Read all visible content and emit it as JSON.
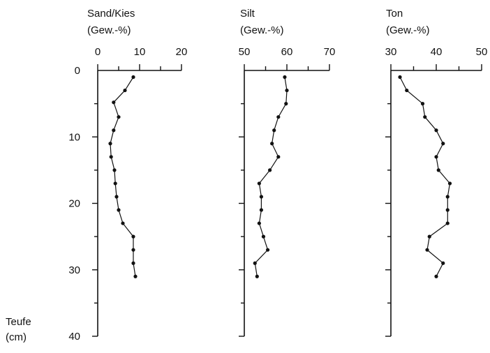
{
  "depth_axis": {
    "label_line1": "Teufe",
    "label_line2": "(cm)",
    "ticks": [
      0,
      10,
      20,
      30,
      40
    ],
    "range": [
      0,
      40
    ]
  },
  "chart_data": [
    {
      "type": "line",
      "title_line1": "Sand/Kies",
      "title_line2": "(Gew.-%)",
      "xlim": [
        0,
        20
      ],
      "x_ticks": [
        0,
        10,
        20
      ],
      "ylim": [
        0,
        40
      ],
      "y_inverted": true,
      "points": [
        {
          "x": 8.5,
          "y": 1
        },
        {
          "x": 6.5,
          "y": 3
        },
        {
          "x": 3.8,
          "y": 4.8
        },
        {
          "x": 5.0,
          "y": 7
        },
        {
          "x": 3.8,
          "y": 9
        },
        {
          "x": 3.0,
          "y": 11
        },
        {
          "x": 3.2,
          "y": 13
        },
        {
          "x": 4.0,
          "y": 15
        },
        {
          "x": 4.2,
          "y": 17
        },
        {
          "x": 4.5,
          "y": 19
        },
        {
          "x": 5.0,
          "y": 21
        },
        {
          "x": 6.0,
          "y": 23
        },
        {
          "x": 8.5,
          "y": 25
        },
        {
          "x": 8.5,
          "y": 27
        },
        {
          "x": 8.5,
          "y": 29
        },
        {
          "x": 9.0,
          "y": 31
        }
      ]
    },
    {
      "type": "line",
      "title_line1": "Silt",
      "title_line2": "(Gew.-%)",
      "xlim": [
        50,
        70
      ],
      "x_ticks": [
        50,
        60,
        70
      ],
      "ylim": [
        0,
        40
      ],
      "y_inverted": true,
      "points": [
        {
          "x": 59.5,
          "y": 1
        },
        {
          "x": 60.0,
          "y": 3
        },
        {
          "x": 59.8,
          "y": 5
        },
        {
          "x": 58.0,
          "y": 7
        },
        {
          "x": 57.0,
          "y": 9
        },
        {
          "x": 56.5,
          "y": 11
        },
        {
          "x": 58.0,
          "y": 13
        },
        {
          "x": 56.0,
          "y": 15
        },
        {
          "x": 53.5,
          "y": 17
        },
        {
          "x": 54.0,
          "y": 19
        },
        {
          "x": 54.0,
          "y": 21
        },
        {
          "x": 53.5,
          "y": 23
        },
        {
          "x": 54.5,
          "y": 25
        },
        {
          "x": 55.5,
          "y": 27
        },
        {
          "x": 52.5,
          "y": 29
        },
        {
          "x": 53.0,
          "y": 31
        }
      ]
    },
    {
      "type": "line",
      "title_line1": "Ton",
      "title_line2": "(Gew.-%)",
      "xlim": [
        30,
        50
      ],
      "x_ticks": [
        30,
        40,
        50
      ],
      "ylim": [
        0,
        40
      ],
      "y_inverted": true,
      "points": [
        {
          "x": 32.0,
          "y": 1
        },
        {
          "x": 33.5,
          "y": 3
        },
        {
          "x": 37.0,
          "y": 5
        },
        {
          "x": 37.5,
          "y": 7
        },
        {
          "x": 40.0,
          "y": 9
        },
        {
          "x": 41.5,
          "y": 11
        },
        {
          "x": 40.0,
          "y": 13
        },
        {
          "x": 40.5,
          "y": 15
        },
        {
          "x": 43.0,
          "y": 17
        },
        {
          "x": 42.5,
          "y": 19
        },
        {
          "x": 42.5,
          "y": 21
        },
        {
          "x": 42.5,
          "y": 23
        },
        {
          "x": 38.5,
          "y": 25
        },
        {
          "x": 38.0,
          "y": 27
        },
        {
          "x": 41.5,
          "y": 29
        },
        {
          "x": 40.0,
          "y": 31
        }
      ]
    }
  ]
}
